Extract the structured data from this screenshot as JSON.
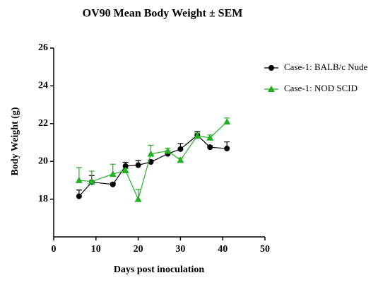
{
  "chart_data": {
    "type": "line",
    "title": "OV90 Mean Body Weight ± SEM",
    "x_label": "Days post inoculation",
    "y_label": "Body Weight (g)",
    "xlim": [
      0,
      50
    ],
    "xticks": [
      0,
      10,
      20,
      30,
      40,
      50
    ],
    "ylim": [
      16,
      26
    ],
    "yticks": [
      18,
      20,
      22,
      24,
      26
    ],
    "legend": "upper right",
    "series": [
      {
        "name": "Case-1: BALB/c Nude",
        "color": "#000000",
        "marker": "circle",
        "x": [
          6,
          9,
          14,
          17,
          20,
          23,
          27,
          30,
          34,
          37,
          41
        ],
        "values": [
          18.15,
          18.9,
          18.78,
          19.75,
          19.8,
          19.97,
          20.4,
          20.65,
          21.38,
          20.75,
          20.68
        ],
        "errors": [
          0.33,
          0.35,
          0.08,
          0.2,
          0.25,
          0.1,
          0.15,
          0.3,
          0.2,
          0.08,
          0.35
        ]
      },
      {
        "name": "Case-1: NOD SCID",
        "color": "#22b022",
        "marker": "triangle",
        "x": [
          6,
          9,
          14,
          17,
          20,
          23,
          27,
          30,
          34,
          37,
          41
        ],
        "values": [
          19.0,
          18.93,
          19.33,
          19.52,
          18.0,
          20.4,
          20.55,
          20.07,
          21.35,
          21.25,
          22.1
        ],
        "errors": [
          0.67,
          0.55,
          0.52,
          0.1,
          0.52,
          0.45,
          0.15,
          0.1,
          0.15,
          0.15,
          0.2
        ]
      }
    ]
  }
}
